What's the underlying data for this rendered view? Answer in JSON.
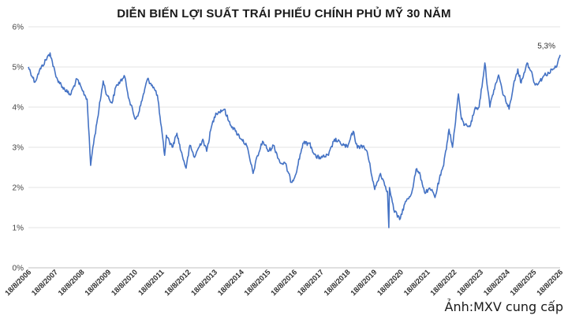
{
  "chart_data": {
    "type": "line",
    "title": "DIỄN BIẾN LỢI SUẤT TRÁI PHIẾU CHÍNH PHỦ MỸ 30 NĂM",
    "xlabel": "",
    "ylabel": "",
    "ylim": [
      0,
      6
    ],
    "yticks": [
      "0%",
      "1%",
      "2%",
      "3%",
      "4%",
      "5%",
      "6%"
    ],
    "xlim": [
      "2006-08-18",
      "2026-08-18"
    ],
    "xticks": [
      "18/8/2006",
      "18/8/2007",
      "18/8/2008",
      "18/8/2009",
      "18/8/2010",
      "18/8/2011",
      "18/8/2012",
      "18/8/2013",
      "18/8/2014",
      "18/8/2015",
      "18/8/2016",
      "18/8/2017",
      "18/8/2018",
      "18/8/2019",
      "18/8/2020",
      "18/8/2021",
      "18/8/2022",
      "18/8/2023",
      "18/8/2024",
      "18/8/2025",
      "18/8/2026"
    ],
    "grid": true,
    "line_color": "#4472C4",
    "series": [
      {
        "x": [
          "2006-08-18",
          "2006-11-15",
          "2007-01-15",
          "2007-06-12",
          "2007-09-01",
          "2007-12-01",
          "2008-03-15",
          "2008-06-15",
          "2008-09-01",
          "2008-11-01",
          "2008-12-20",
          "2009-01-20",
          "2009-03-15",
          "2009-06-10",
          "2009-08-01",
          "2009-10-10",
          "2009-12-01",
          "2010-02-01",
          "2010-04-05",
          "2010-06-01",
          "2010-08-25",
          "2010-10-10",
          "2011-02-09",
          "2011-04-15",
          "2011-06-25",
          "2011-08-10",
          "2011-10-03",
          "2011-10-27",
          "2012-01-15",
          "2012-03-20",
          "2012-05-15",
          "2012-07-24",
          "2012-09-14",
          "2012-11-15",
          "2013-01-15",
          "2013-03-10",
          "2013-05-02",
          "2013-07-05",
          "2013-09-05",
          "2013-12-31",
          "2014-03-01",
          "2014-06-01",
          "2014-08-28",
          "2014-11-01",
          "2015-01-30",
          "2015-03-01",
          "2015-06-10",
          "2015-09-01",
          "2015-11-06",
          "2016-02-11",
          "2016-04-15",
          "2016-07-08",
          "2016-09-01",
          "2016-12-15",
          "2017-03-13",
          "2017-06-15",
          "2017-09-07",
          "2017-12-01",
          "2018-02-21",
          "2018-05-15",
          "2018-08-20",
          "2018-11-05",
          "2019-01-03",
          "2019-03-01",
          "2019-05-15",
          "2019-08-28",
          "2019-11-15",
          "2020-02-20",
          "2020-03-09",
          "2020-03-18",
          "2020-05-15",
          "2020-08-04",
          "2020-10-15",
          "2021-01-15",
          "2021-03-18",
          "2021-05-15",
          "2021-07-20",
          "2021-09-01",
          "2021-11-01",
          "2021-12-03",
          "2022-02-01",
          "2022-04-01",
          "2022-06-14",
          "2022-08-01",
          "2022-10-21",
          "2022-12-01",
          "2023-01-15",
          "2023-04-06",
          "2023-06-01",
          "2023-08-01",
          "2023-10-19",
          "2023-12-27",
          "2024-02-01",
          "2024-04-25",
          "2024-06-15",
          "2024-09-16",
          "2024-11-15",
          "2025-01-14",
          "2025-03-01",
          "2025-04-09",
          "2025-05-22",
          "2025-07-15",
          "2025-09-10",
          "2025-11-15",
          "2026-01-15",
          "2026-03-15",
          "2026-05-15",
          "2026-07-01",
          "2026-08-18"
        ],
        "y": [
          5.0,
          4.62,
          4.9,
          5.35,
          4.75,
          4.5,
          4.3,
          4.7,
          4.4,
          4.2,
          2.55,
          3.0,
          3.6,
          4.65,
          4.3,
          4.1,
          4.5,
          4.65,
          4.75,
          4.2,
          3.7,
          3.85,
          4.7,
          4.55,
          4.3,
          3.6,
          2.8,
          3.3,
          3.0,
          3.35,
          2.9,
          2.48,
          3.05,
          2.75,
          3.0,
          3.2,
          2.9,
          3.5,
          3.85,
          3.95,
          3.65,
          3.4,
          3.2,
          3.05,
          2.35,
          2.6,
          3.15,
          2.9,
          3.05,
          2.6,
          2.6,
          2.13,
          2.3,
          3.1,
          3.1,
          2.75,
          2.75,
          2.8,
          3.2,
          3.1,
          3.0,
          3.4,
          2.98,
          3.05,
          2.9,
          1.95,
          2.35,
          1.9,
          1.0,
          2.0,
          1.45,
          1.2,
          1.6,
          1.85,
          2.45,
          2.3,
          1.85,
          1.95,
          1.9,
          1.75,
          2.2,
          2.55,
          3.45,
          3.0,
          4.33,
          3.7,
          3.55,
          3.55,
          3.95,
          4.0,
          5.1,
          4.0,
          4.3,
          4.8,
          4.4,
          3.95,
          4.55,
          4.95,
          4.6,
          4.85,
          5.1,
          4.9,
          4.55,
          4.65,
          4.8,
          4.85,
          4.95,
          5.0,
          5.3
        ]
      }
    ],
    "annotations": [
      {
        "text": "5,3%",
        "x": "2026-08-18",
        "y": 5.3
      }
    ]
  },
  "credit": "Ảnh:MXV cung cấp"
}
